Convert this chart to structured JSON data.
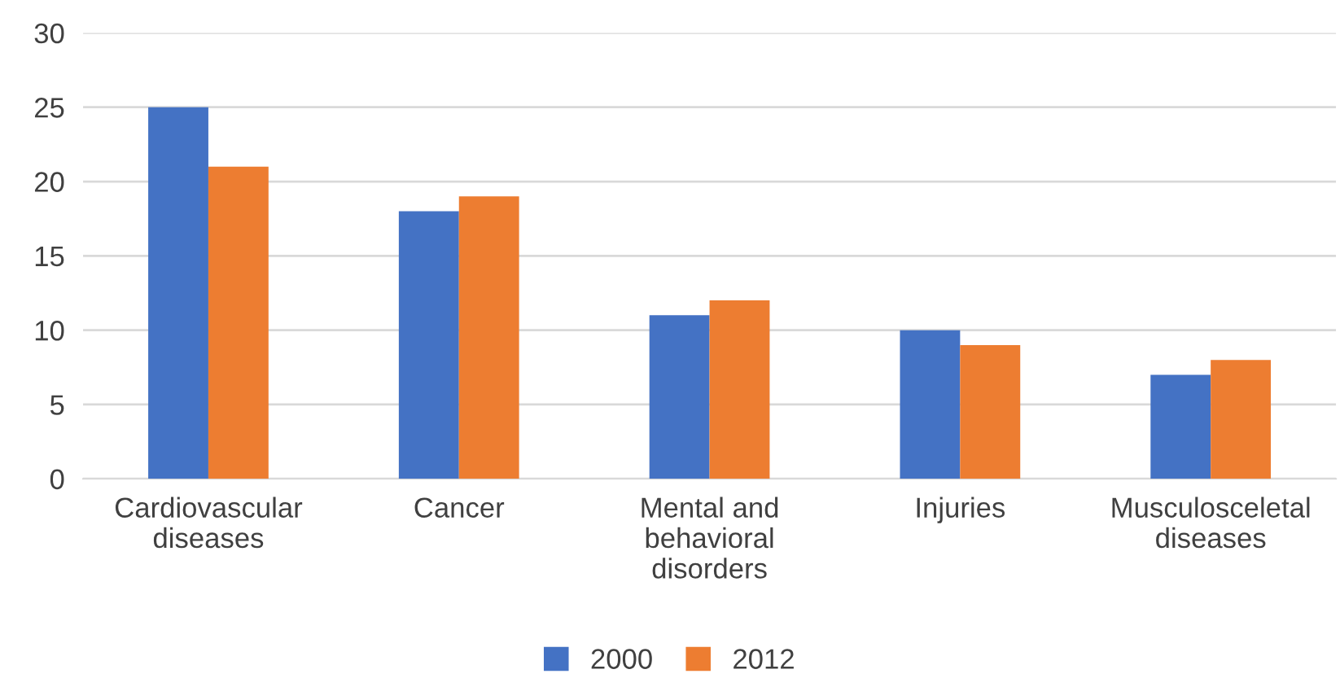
{
  "chart_data": {
    "type": "bar",
    "categories": [
      "Cardiovascular\ndiseases",
      "Cancer",
      "Mental and\nbehavioral\ndisorders",
      "Injuries",
      "Musculosceletal\ndiseases"
    ],
    "series": [
      {
        "name": "2000",
        "color": "#4472c4",
        "values": [
          25,
          18,
          11,
          10,
          7
        ]
      },
      {
        "name": "2012",
        "color": "#ed7d31",
        "values": [
          21,
          19,
          12,
          9,
          8
        ]
      }
    ],
    "ylim": [
      0,
      30
    ],
    "yticks": [
      0,
      5,
      10,
      15,
      20,
      25,
      30
    ],
    "grid": "y",
    "legend": "bottom"
  }
}
